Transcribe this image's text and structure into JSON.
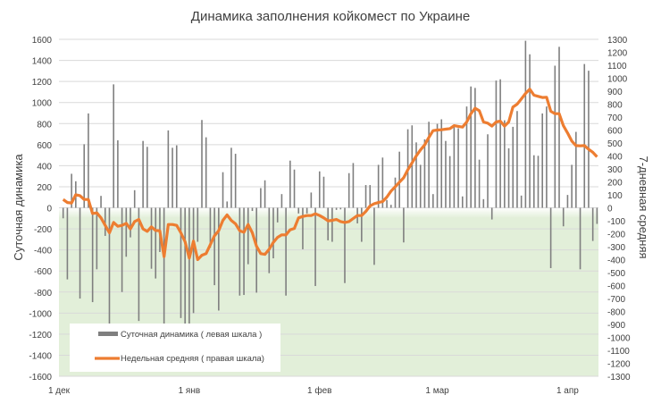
{
  "chart_data": {
    "type": "bar+line",
    "title": "Динамика заполнения койкомест по Украине",
    "ylabel_left": "Суточная динамика",
    "ylabel_right": "7-дневная средняя",
    "ylim_left": [
      -1600,
      1600
    ],
    "ylim_right": [
      -1300,
      1300
    ],
    "yticks_left": [
      1600,
      1400,
      1200,
      1000,
      800,
      600,
      400,
      200,
      0,
      -200,
      -400,
      -600,
      -800,
      -1000,
      -1200,
      -1400,
      -1600
    ],
    "yticks_right": [
      1300,
      1200,
      1100,
      1000,
      900,
      800,
      700,
      600,
      500,
      400,
      300,
      200,
      100,
      0,
      -100,
      -200,
      -300,
      -400,
      -500,
      -600,
      -700,
      -800,
      -900,
      -1000,
      -1100,
      -1200,
      -1300
    ],
    "xticks": [
      {
        "label": "1 дек",
        "day": 0
      },
      {
        "label": "1 янв",
        "day": 31
      },
      {
        "label": "1 фев",
        "day": 62
      },
      {
        "label": "1 мар",
        "day": 90
      },
      {
        "label": "1 апр",
        "day": 121
      }
    ],
    "grid": true,
    "negative_region_color": "#e2efd9",
    "legend_position": "bottom-left",
    "series": [
      {
        "name": "Суточная динамика ( левая шкала )",
        "type": "bar",
        "axis": "left",
        "color": "#7f7f7f",
        "values": [
          -100,
          -680,
          323,
          252,
          -862,
          604,
          896,
          -896,
          -584,
          113,
          -267,
          -1118,
          1172,
          641,
          -800,
          -465,
          -281,
          167,
          -1075,
          635,
          579,
          -579,
          -672,
          -420,
          -1100,
          735,
          570,
          593,
          -1047,
          -1100,
          -1100,
          -1000,
          -323,
          834,
          670,
          -380,
          -735,
          -976,
          338,
          60,
          570,
          513,
          -834,
          -828,
          -536,
          -30,
          -806,
          187,
          261,
          -621,
          -480,
          -139,
          130,
          -834,
          448,
          363,
          -54,
          -394,
          -54,
          145,
          -743,
          346,
          295,
          -309,
          -323,
          -20,
          -15,
          -715,
          329,
          425,
          -148,
          -323,
          216,
          216,
          -542,
          408,
          477,
          74,
          28,
          287,
          533,
          -329,
          746,
          783,
          621,
          408,
          650,
          817,
          130,
          797,
          840,
          635,
          491,
          769,
          755,
          108,
          962,
          1152,
          1138,
          457,
          82,
          698,
          -111,
          1209,
          1220,
          831,
          565,
          769,
          919,
          116,
          1586,
          1458,
          499,
          494,
          896,
          962,
          -573,
          1350,
          1529,
          -176,
          122,
          408,
          721,
          -584,
          1365,
          1302,
          -315,
          -153
        ]
      },
      {
        "name": "Недельная средняя ( правая шкала)",
        "type": "line",
        "axis": "right",
        "color": "#ed7d31",
        "values": [
          64,
          41,
          37,
          101,
          94,
          64,
          64,
          -44,
          -39,
          -78,
          -136,
          -193,
          -113,
          -143,
          -136,
          -120,
          -163,
          -106,
          -90,
          -163,
          -182,
          -147,
          -175,
          -177,
          -377,
          -129,
          -129,
          -136,
          -193,
          -262,
          -389,
          -257,
          -400,
          -366,
          -354,
          -285,
          -216,
          -177,
          -97,
          -55,
          -97,
          -124,
          -177,
          -189,
          -129,
          -193,
          -297,
          -354,
          -359,
          -320,
          -267,
          -228,
          -209,
          -209,
          -170,
          -159,
          -78,
          -67,
          -60,
          -60,
          -46,
          -60,
          -78,
          -101,
          -97,
          -90,
          -106,
          -113,
          -106,
          -83,
          -60,
          -60,
          -28,
          14,
          32,
          41,
          48,
          83,
          129,
          163,
          198,
          232,
          294,
          347,
          400,
          446,
          485,
          543,
          595,
          600,
          602,
          607,
          611,
          634,
          628,
          623,
          662,
          726,
          768,
          749,
          662,
          653,
          630,
          662,
          669,
          630,
          662,
          777,
          800,
          841,
          883,
          915,
          869,
          860,
          851,
          853,
          745,
          726,
          726,
          634,
          577,
          515,
          480,
          478,
          480,
          451,
          428,
          393
        ]
      }
    ]
  }
}
